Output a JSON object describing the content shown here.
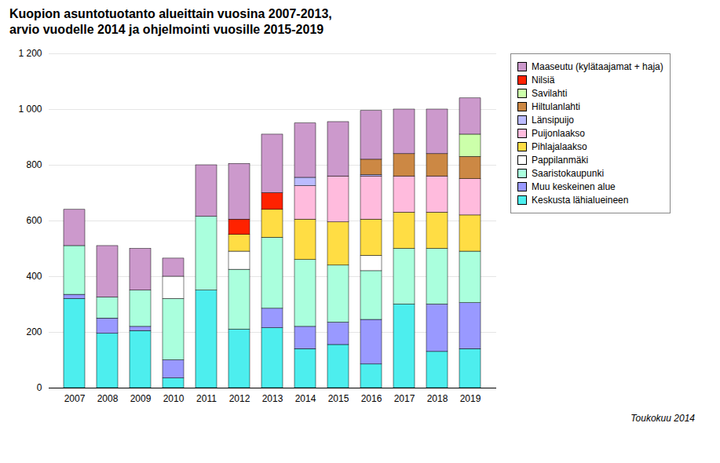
{
  "chart_data": {
    "type": "bar",
    "stacked": true,
    "title": "Kuopion asuntotuotanto alueittain vuosina 2007-2013,",
    "subtitle": "arvio vuodelle 2014 ja ohjelmointi vuosille 2015-2019",
    "annotations": [
      "Toukokuu 2014"
    ],
    "categories": [
      "2007",
      "2008",
      "2009",
      "2010",
      "2011",
      "2012",
      "2013",
      "2014",
      "2015",
      "2016",
      "2017",
      "2018",
      "2019"
    ],
    "ylim": [
      0,
      1200
    ],
    "yticks": [
      0,
      200,
      400,
      600,
      800,
      {
        "value": 1000,
        "label": "1 000"
      },
      {
        "value": 1200,
        "label": "1 200"
      }
    ],
    "grid": true,
    "legend": "right",
    "series": [
      {
        "name": "Keskusta lähialueineen",
        "color": "#4deeee",
        "values": [
          320,
          195,
          205,
          35,
          350,
          210,
          215,
          140,
          155,
          85,
          300,
          130,
          140
        ]
      },
      {
        "name": "Muu keskeinen alue",
        "color": "#9999ff",
        "values": [
          15,
          55,
          15,
          65,
          0,
          0,
          70,
          80,
          80,
          160,
          0,
          170,
          165
        ]
      },
      {
        "name": "Saaristokaupunki",
        "color": "#aaffdd",
        "values": [
          175,
          75,
          130,
          220,
          265,
          215,
          255,
          240,
          205,
          175,
          200,
          200,
          185
        ]
      },
      {
        "name": "Pappilanmäki",
        "color": "#ffffff",
        "values": [
          0,
          0,
          0,
          80,
          0,
          65,
          0,
          0,
          0,
          55,
          0,
          0,
          0
        ]
      },
      {
        "name": "Pihlajalaakso",
        "color": "#ffdd44",
        "values": [
          0,
          0,
          0,
          0,
          0,
          60,
          100,
          145,
          155,
          130,
          130,
          130,
          130
        ]
      },
      {
        "name": "Puijonlaakso",
        "color": "#ffbbdd",
        "values": [
          0,
          0,
          0,
          0,
          0,
          0,
          0,
          120,
          165,
          155,
          130,
          130,
          130
        ]
      },
      {
        "name": "Länsipuijo",
        "color": "#bbbbff",
        "values": [
          0,
          0,
          0,
          0,
          0,
          0,
          0,
          30,
          0,
          5,
          0,
          0,
          0
        ]
      },
      {
        "name": "Hiltulanlahti",
        "color": "#cc8844",
        "values": [
          0,
          0,
          0,
          0,
          0,
          0,
          0,
          0,
          0,
          55,
          80,
          80,
          80
        ]
      },
      {
        "name": "Savilahti",
        "color": "#ccffaa",
        "values": [
          0,
          0,
          0,
          0,
          0,
          0,
          0,
          0,
          0,
          0,
          0,
          0,
          80
        ]
      },
      {
        "name": "Nilsiä",
        "color": "#ff2200",
        "values": [
          0,
          0,
          0,
          0,
          0,
          55,
          60,
          0,
          0,
          0,
          0,
          0,
          0
        ]
      },
      {
        "name": "Maaseutu (kylätaajamat + haja)",
        "color": "#cc99cc",
        "values": [
          130,
          185,
          150,
          65,
          185,
          200,
          210,
          195,
          195,
          175,
          160,
          160,
          130
        ]
      }
    ]
  }
}
